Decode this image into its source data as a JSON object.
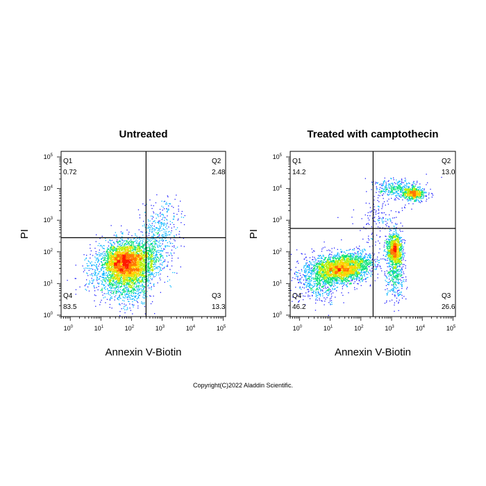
{
  "chart_data": [
    {
      "type": "scatter",
      "title": "Untreated",
      "xlabel": "Annexin V-Biotin",
      "ylabel": "PI",
      "x_scale": "log",
      "y_scale": "log",
      "xlim": [
        0.5,
        120000
      ],
      "ylim": [
        0.9,
        150000
      ],
      "x_ticks": [
        1,
        10,
        100,
        1000,
        10000,
        100000
      ],
      "y_ticks": [
        1,
        10,
        100,
        1000,
        10000,
        100000
      ],
      "gate": {
        "x": 300,
        "y": 280
      },
      "quadrants": [
        {
          "label": "Q1",
          "value": "0.72",
          "position": "top-left"
        },
        {
          "label": "Q2",
          "value": "2.48",
          "position": "top-right"
        },
        {
          "label": "Q3",
          "value": "13.3",
          "position": "bottom-right"
        },
        {
          "label": "Q4",
          "value": "83.5",
          "position": "bottom-left"
        }
      ],
      "populations": [
        {
          "x": 60,
          "y": 50,
          "sx": 0.33,
          "sy": 0.3,
          "n": 2600,
          "seed": 11
        },
        {
          "x": 35,
          "y": 25,
          "sx": 0.45,
          "sy": 0.45,
          "n": 1100,
          "seed": 12
        },
        {
          "x": 250,
          "y": 50,
          "sx": 0.3,
          "sy": 0.35,
          "n": 650,
          "seed": 13
        },
        {
          "x": 100,
          "y": 8,
          "sx": 0.3,
          "sy": 0.35,
          "n": 350,
          "seed": 14
        },
        {
          "x": 700,
          "y": 250,
          "sx": 0.35,
          "sy": 0.45,
          "n": 320,
          "seed": 15
        },
        {
          "x": 1200,
          "y": 1500,
          "sx": 0.3,
          "sy": 0.35,
          "n": 110,
          "seed": 16
        }
      ]
    },
    {
      "type": "scatter",
      "title": "Treated with camptothecin",
      "xlabel": "Annexin V-Biotin",
      "ylabel": "PI",
      "x_scale": "log",
      "y_scale": "log",
      "xlim": [
        0.5,
        120000
      ],
      "ylim": [
        0.9,
        150000
      ],
      "x_ticks": [
        1,
        10,
        100,
        1000,
        10000,
        100000
      ],
      "y_ticks": [
        1,
        10,
        100,
        1000,
        10000,
        100000
      ],
      "gate": {
        "x": 250,
        "y": 550
      },
      "quadrants": [
        {
          "label": "Q1",
          "value": "14.2",
          "position": "top-left"
        },
        {
          "label": "Q2",
          "value": "13.0",
          "position": "top-right"
        },
        {
          "label": "Q3",
          "value": "26.6",
          "position": "bottom-right"
        },
        {
          "label": "Q4",
          "value": "46.2",
          "position": "bottom-left"
        }
      ],
      "populations": [
        {
          "x": 20,
          "y": 30,
          "sx": 0.4,
          "sy": 0.22,
          "n": 2000,
          "seed": 21
        },
        {
          "x": 4,
          "y": 15,
          "sx": 0.4,
          "sy": 0.35,
          "n": 700,
          "seed": 22
        },
        {
          "x": 70,
          "y": 45,
          "sx": 0.3,
          "sy": 0.2,
          "n": 500,
          "seed": 23
        },
        {
          "x": 1200,
          "y": 120,
          "sx": 0.12,
          "sy": 0.25,
          "n": 1000,
          "seed": 24
        },
        {
          "x": 1300,
          "y": 20,
          "sx": 0.15,
          "sy": 0.45,
          "n": 400,
          "seed": 25
        },
        {
          "x": 5000,
          "y": 7000,
          "sx": 0.18,
          "sy": 0.1,
          "n": 550,
          "seed": 26
        },
        {
          "x": 1500,
          "y": 10000,
          "sx": 0.4,
          "sy": 0.15,
          "n": 350,
          "seed": 27
        },
        {
          "x": 500,
          "y": 1000,
          "sx": 0.4,
          "sy": 0.4,
          "n": 150,
          "seed": 28
        }
      ]
    }
  ],
  "copyright": "Copyright(C)2022 Aladdin Scientific."
}
